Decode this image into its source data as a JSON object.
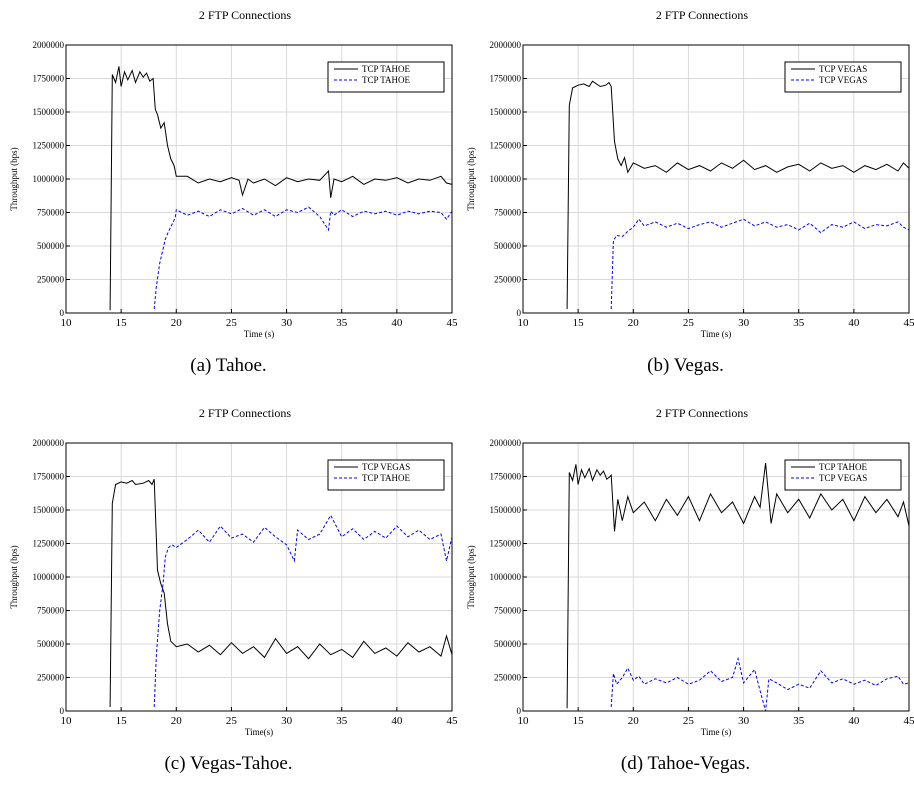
{
  "chart_data": [
    {
      "type": "line",
      "title": "2 FTP Connections",
      "xlabel": "Time (s)",
      "ylabel": "Throughput (bps)",
      "caption": "(a)  Tahoe.",
      "xlim": [
        10,
        45
      ],
      "ylim": [
        0,
        2000000
      ],
      "xticks": [
        10,
        15,
        20,
        25,
        30,
        35,
        40,
        45
      ],
      "yticks": [
        0,
        250000,
        500000,
        750000,
        1000000,
        1250000,
        1500000,
        1750000,
        2000000
      ],
      "grid": true,
      "legend_position": "top-right",
      "series": [
        {
          "name": "TCP TAHOE",
          "color": "#000000",
          "dash": "solid",
          "x": [
            14.0,
            14.2,
            14.5,
            14.8,
            15.0,
            15.3,
            15.6,
            16.0,
            16.3,
            16.7,
            17.0,
            17.3,
            17.6,
            17.9,
            18.1,
            18.3,
            18.6,
            18.9,
            19.2,
            19.5,
            19.8,
            20.0,
            21.0,
            22.0,
            23.0,
            24.0,
            25.0,
            25.7,
            26.0,
            26.5,
            27.0,
            28.0,
            29.0,
            30.0,
            31.0,
            32.0,
            33.0,
            33.8,
            34.0,
            34.3,
            35.0,
            36.0,
            37.0,
            38.0,
            39.0,
            40.0,
            41.0,
            42.0,
            43.0,
            44.0,
            44.5,
            45.0
          ],
          "y": [
            20000,
            1780000,
            1720000,
            1840000,
            1690000,
            1800000,
            1740000,
            1810000,
            1720000,
            1800000,
            1760000,
            1790000,
            1730000,
            1750000,
            1520000,
            1480000,
            1380000,
            1420000,
            1250000,
            1150000,
            1100000,
            1020000,
            1020000,
            970000,
            1000000,
            980000,
            1010000,
            990000,
            880000,
            1000000,
            970000,
            1000000,
            950000,
            1010000,
            980000,
            1000000,
            990000,
            1060000,
            860000,
            1000000,
            980000,
            1020000,
            960000,
            1000000,
            990000,
            1010000,
            970000,
            1000000,
            990000,
            1020000,
            970000,
            960000
          ]
        },
        {
          "name": "TCP TAHOE",
          "color": "#0000ff",
          "dash": "dashed",
          "x": [
            18.0,
            18.2,
            18.5,
            18.8,
            19.0,
            19.3,
            19.6,
            19.9,
            20.0,
            21.0,
            22.0,
            23.0,
            24.0,
            25.0,
            26.0,
            27.0,
            28.0,
            29.0,
            30.0,
            31.0,
            32.0,
            33.0,
            33.8,
            34.0,
            34.3,
            35.0,
            36.0,
            37.0,
            38.0,
            39.0,
            40.0,
            41.0,
            42.0,
            43.0,
            44.0,
            44.5,
            45.0
          ],
          "y": [
            30000,
            200000,
            370000,
            480000,
            550000,
            610000,
            660000,
            710000,
            770000,
            730000,
            760000,
            720000,
            770000,
            740000,
            780000,
            730000,
            770000,
            720000,
            770000,
            750000,
            790000,
            720000,
            620000,
            760000,
            730000,
            770000,
            720000,
            760000,
            740000,
            760000,
            730000,
            760000,
            740000,
            760000,
            750000,
            700000,
            760000
          ]
        }
      ]
    },
    {
      "type": "line",
      "title": "2 FTP Connections",
      "xlabel": "Time (s)",
      "ylabel": "Throughput (bps)",
      "caption": "(b)  Vegas.",
      "xlim": [
        10,
        45
      ],
      "ylim": [
        0,
        2000000
      ],
      "xticks": [
        10,
        15,
        20,
        25,
        30,
        35,
        40,
        45
      ],
      "yticks": [
        0,
        250000,
        500000,
        750000,
        1000000,
        1250000,
        1500000,
        1750000,
        2000000
      ],
      "grid": true,
      "legend_position": "top-right",
      "series": [
        {
          "name": "TCP VEGAS",
          "color": "#000000",
          "dash": "solid",
          "x": [
            14.0,
            14.2,
            14.5,
            15.0,
            15.5,
            16.0,
            16.3,
            17.0,
            17.5,
            17.8,
            18.0,
            18.3,
            18.6,
            18.9,
            19.2,
            19.5,
            20.0,
            21.0,
            22.0,
            23.0,
            24.0,
            25.0,
            26.0,
            27.0,
            28.0,
            29.0,
            30.0,
            31.0,
            32.0,
            33.0,
            34.0,
            35.0,
            36.0,
            37.0,
            38.0,
            39.0,
            40.0,
            41.0,
            42.0,
            43.0,
            44.0,
            44.5,
            45.0
          ],
          "y": [
            30000,
            1550000,
            1680000,
            1700000,
            1710000,
            1690000,
            1730000,
            1690000,
            1700000,
            1720000,
            1690000,
            1280000,
            1150000,
            1100000,
            1160000,
            1050000,
            1120000,
            1080000,
            1100000,
            1050000,
            1120000,
            1070000,
            1100000,
            1060000,
            1120000,
            1080000,
            1140000,
            1070000,
            1100000,
            1050000,
            1090000,
            1110000,
            1060000,
            1120000,
            1080000,
            1100000,
            1050000,
            1100000,
            1070000,
            1110000,
            1060000,
            1120000,
            1080000
          ]
        },
        {
          "name": "TCP VEGAS",
          "color": "#0000ff",
          "dash": "dashed",
          "x": [
            18.0,
            18.2,
            18.5,
            19.0,
            19.5,
            20.0,
            20.5,
            21.0,
            22.0,
            23.0,
            24.0,
            25.0,
            26.0,
            27.0,
            28.0,
            29.0,
            30.0,
            31.0,
            32.0,
            33.0,
            34.0,
            35.0,
            36.0,
            37.0,
            38.0,
            39.0,
            40.0,
            41.0,
            42.0,
            43.0,
            44.0,
            44.5,
            45.0
          ],
          "y": [
            30000,
            540000,
            580000,
            570000,
            610000,
            640000,
            700000,
            650000,
            680000,
            640000,
            670000,
            630000,
            660000,
            680000,
            640000,
            670000,
            700000,
            650000,
            680000,
            640000,
            660000,
            620000,
            670000,
            600000,
            660000,
            640000,
            680000,
            630000,
            660000,
            650000,
            680000,
            640000,
            620000
          ]
        }
      ]
    },
    {
      "type": "line",
      "title": "2 FTP Connections",
      "xlabel": "Time(s)",
      "ylabel": "Throughput (bps)",
      "caption": "(c)  Vegas-Tahoe.",
      "xlim": [
        10,
        45
      ],
      "ylim": [
        0,
        2000000
      ],
      "xticks": [
        10,
        15,
        20,
        25,
        30,
        35,
        40,
        45
      ],
      "yticks": [
        0,
        250000,
        500000,
        750000,
        1000000,
        1250000,
        1500000,
        1750000,
        2000000
      ],
      "grid": true,
      "legend_position": "top-right",
      "series": [
        {
          "name": "TCP VEGAS",
          "color": "#000000",
          "dash": "solid",
          "x": [
            14.0,
            14.2,
            14.5,
            15.0,
            15.5,
            16.0,
            16.3,
            17.0,
            17.5,
            17.8,
            18.0,
            18.3,
            18.6,
            18.9,
            19.2,
            19.5,
            20.0,
            21.0,
            22.0,
            23.0,
            24.0,
            25.0,
            26.0,
            27.0,
            28.0,
            29.0,
            30.0,
            31.0,
            32.0,
            33.0,
            34.0,
            35.0,
            36.0,
            37.0,
            38.0,
            39.0,
            40.0,
            41.0,
            42.0,
            43.0,
            44.0,
            44.5,
            45.0
          ],
          "y": [
            30000,
            1550000,
            1690000,
            1710000,
            1700000,
            1720000,
            1690000,
            1700000,
            1720000,
            1690000,
            1730000,
            1050000,
            950000,
            880000,
            650000,
            520000,
            480000,
            500000,
            440000,
            490000,
            420000,
            510000,
            430000,
            480000,
            400000,
            540000,
            430000,
            480000,
            390000,
            500000,
            420000,
            460000,
            400000,
            520000,
            430000,
            470000,
            410000,
            510000,
            440000,
            480000,
            410000,
            560000,
            420000
          ]
        },
        {
          "name": "TCP TAHOE",
          "color": "#0000ff",
          "dash": "dashed",
          "x": [
            18.0,
            18.2,
            18.5,
            18.8,
            19.0,
            19.3,
            19.6,
            20.0,
            21.0,
            22.0,
            23.0,
            24.0,
            25.0,
            26.0,
            27.0,
            28.0,
            29.0,
            30.0,
            30.7,
            31.0,
            32.0,
            33.0,
            34.0,
            35.0,
            36.0,
            37.0,
            38.0,
            39.0,
            40.0,
            41.0,
            42.0,
            43.0,
            44.0,
            44.5,
            45.0
          ],
          "y": [
            30000,
            420000,
            750000,
            950000,
            1150000,
            1220000,
            1240000,
            1220000,
            1280000,
            1350000,
            1260000,
            1380000,
            1290000,
            1320000,
            1260000,
            1370000,
            1300000,
            1240000,
            1120000,
            1350000,
            1280000,
            1320000,
            1460000,
            1300000,
            1360000,
            1280000,
            1340000,
            1290000,
            1380000,
            1300000,
            1350000,
            1280000,
            1320000,
            1120000,
            1300000
          ]
        }
      ]
    },
    {
      "type": "line",
      "title": "2 FTP Connections",
      "xlabel": "Time (s)",
      "ylabel": "Throughput (bps)",
      "caption": "(d)  Tahoe-Vegas.",
      "xlim": [
        10,
        45
      ],
      "ylim": [
        0,
        2000000
      ],
      "xticks": [
        10,
        15,
        20,
        25,
        30,
        35,
        40,
        45
      ],
      "yticks": [
        0,
        250000,
        500000,
        750000,
        1000000,
        1250000,
        1500000,
        1750000,
        2000000
      ],
      "grid": true,
      "legend_position": "top-right",
      "series": [
        {
          "name": "TCP TAHOE",
          "color": "#000000",
          "dash": "solid",
          "x": [
            14.0,
            14.2,
            14.5,
            14.8,
            15.0,
            15.3,
            15.6,
            16.0,
            16.3,
            16.7,
            17.0,
            17.3,
            17.6,
            17.9,
            18.0,
            18.3,
            18.6,
            19.0,
            19.5,
            20.0,
            21.0,
            22.0,
            23.0,
            24.0,
            25.0,
            26.0,
            27.0,
            28.0,
            29.0,
            30.0,
            31.0,
            31.5,
            32.0,
            32.5,
            33.0,
            34.0,
            35.0,
            36.0,
            37.0,
            38.0,
            39.0,
            40.0,
            41.0,
            42.0,
            43.0,
            44.0,
            44.5,
            45.0
          ],
          "y": [
            20000,
            1780000,
            1720000,
            1840000,
            1690000,
            1800000,
            1740000,
            1810000,
            1720000,
            1800000,
            1760000,
            1790000,
            1730000,
            1750000,
            1760000,
            1340000,
            1580000,
            1420000,
            1600000,
            1480000,
            1560000,
            1420000,
            1580000,
            1460000,
            1600000,
            1420000,
            1620000,
            1480000,
            1560000,
            1400000,
            1600000,
            1520000,
            1850000,
            1400000,
            1620000,
            1480000,
            1580000,
            1440000,
            1620000,
            1500000,
            1580000,
            1420000,
            1600000,
            1480000,
            1580000,
            1450000,
            1560000,
            1380000
          ]
        },
        {
          "name": "TCP VEGAS",
          "color": "#0000ff",
          "dash": "dashed",
          "x": [
            18.0,
            18.2,
            18.5,
            19.0,
            19.5,
            20.0,
            20.5,
            21.0,
            22.0,
            23.0,
            24.0,
            25.0,
            26.0,
            27.0,
            28.0,
            29.0,
            29.5,
            30.0,
            31.0,
            31.5,
            32.0,
            32.3,
            33.0,
            34.0,
            35.0,
            36.0,
            37.0,
            38.0,
            39.0,
            40.0,
            41.0,
            42.0,
            43.0,
            44.0,
            44.5,
            45.0
          ],
          "y": [
            30000,
            280000,
            200000,
            250000,
            320000,
            230000,
            260000,
            200000,
            240000,
            210000,
            250000,
            200000,
            230000,
            300000,
            220000,
            250000,
            390000,
            210000,
            310000,
            150000,
            0,
            240000,
            210000,
            160000,
            200000,
            170000,
            300000,
            210000,
            240000,
            200000,
            230000,
            190000,
            240000,
            260000,
            200000,
            210000
          ]
        }
      ]
    }
  ]
}
